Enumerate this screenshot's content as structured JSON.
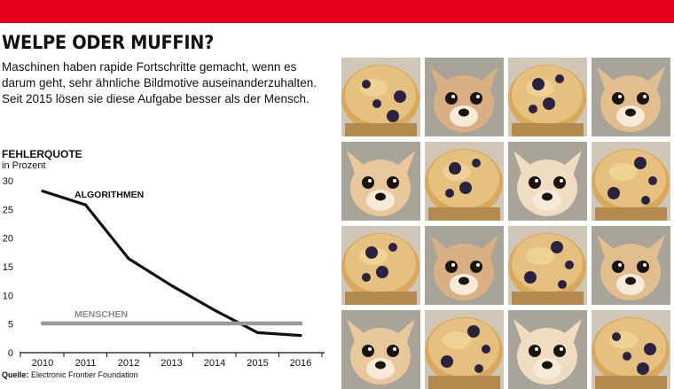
{
  "header": {
    "title": "WELPE ODER MUFFIN?",
    "lede": "Maschinen haben rapide Fortschritte gemacht, wenn es darum geht, sehr ähnliche Bildmotive auseinanderzuhalten. Seit 2015 lösen sie diese Aufgabe besser als der Mensch."
  },
  "colors": {
    "accent": "#e2001a",
    "algorithm_line": "#111111",
    "human_line": "#9a9a95"
  },
  "chart_data": {
    "type": "line",
    "title": "FEHLERQUOTE",
    "subtitle": "in Prozent",
    "x": [
      "2010",
      "2011",
      "2012",
      "2013",
      "2014",
      "2015",
      "2016"
    ],
    "series": [
      {
        "name": "ALGORITHMEN",
        "values": [
          28.2,
          25.8,
          16.4,
          11.7,
          7.4,
          3.5,
          3.0
        ]
      },
      {
        "name": "MENSCHEN",
        "values": [
          5.1,
          5.1,
          5.1,
          5.1,
          5.1,
          5.1,
          5.1
        ]
      }
    ],
    "yticks": [
      "0",
      "5",
      "10",
      "15",
      "20",
      "25",
      "30"
    ],
    "ylim": [
      0,
      30
    ],
    "grid": false,
    "legend": "inline labels"
  },
  "source": {
    "label": "Quelle:",
    "text": "Electronic Frontier Foundation"
  },
  "photo_grid": {
    "rows": 4,
    "cols": 4,
    "tiles": [
      {
        "kind": "muffin"
      },
      {
        "kind": "puppy"
      },
      {
        "kind": "muffin"
      },
      {
        "kind": "puppy"
      },
      {
        "kind": "puppy"
      },
      {
        "kind": "muffin"
      },
      {
        "kind": "puppy"
      },
      {
        "kind": "muffin"
      },
      {
        "kind": "muffin"
      },
      {
        "kind": "puppy"
      },
      {
        "kind": "muffin"
      },
      {
        "kind": "puppy"
      },
      {
        "kind": "puppy"
      },
      {
        "kind": "muffin"
      },
      {
        "kind": "puppy"
      },
      {
        "kind": "muffin"
      }
    ]
  }
}
